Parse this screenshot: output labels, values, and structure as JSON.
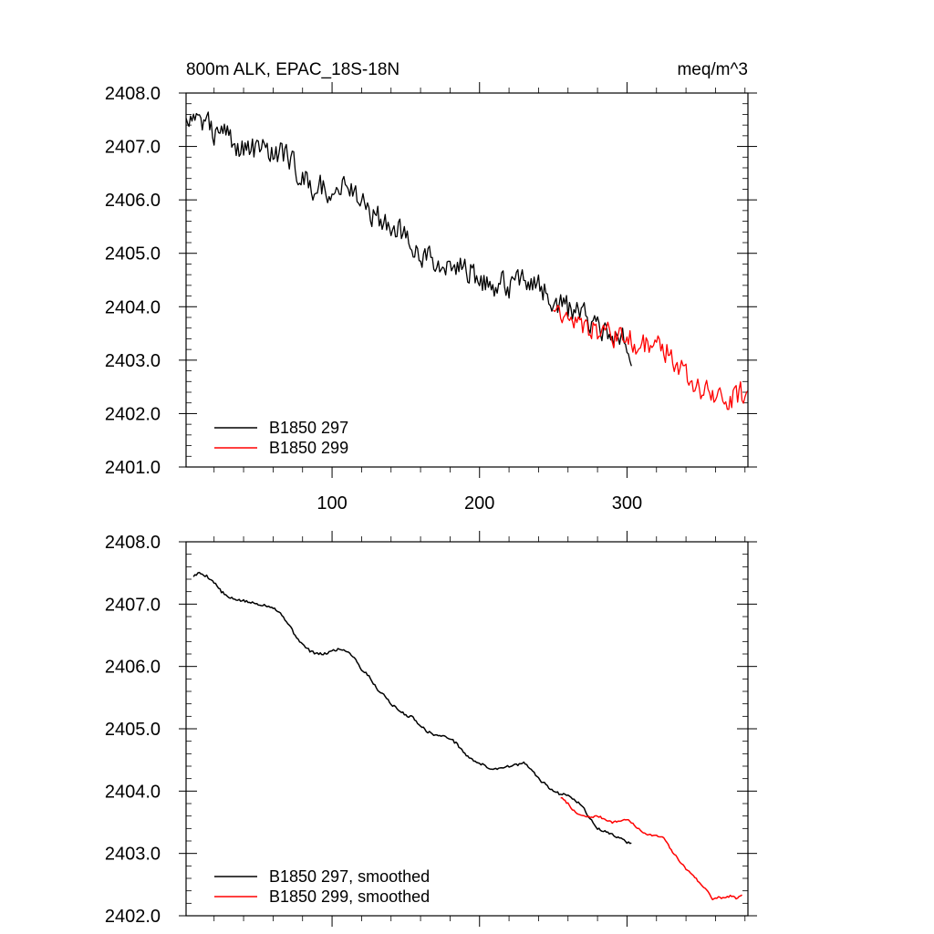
{
  "chart_data": [
    {
      "type": "line",
      "title": "800m ALK, EPAC_18S-18N",
      "units": "meq/m^3",
      "xlim": [
        1,
        382
      ],
      "ylim": [
        2401.0,
        2408.0
      ],
      "yticks": [
        "2401.0",
        "2402.0",
        "2403.0",
        "2404.0",
        "2405.0",
        "2406.0",
        "2407.0",
        "2408.0"
      ],
      "xticks": [
        "100",
        "200",
        "300"
      ],
      "xtick_values": [
        100,
        200,
        300
      ],
      "series": [
        {
          "name": "B1850 297",
          "color": "#000000",
          "x_start": 1,
          "x_end": 303,
          "anchors": [
            [
              1,
              2407.6
            ],
            [
              10,
              2407.5
            ],
            [
              25,
              2407.2
            ],
            [
              40,
              2407.0
            ],
            [
              55,
              2406.95
            ],
            [
              65,
              2406.9
            ],
            [
              75,
              2406.6
            ],
            [
              85,
              2406.25
            ],
            [
              100,
              2406.2
            ],
            [
              110,
              2406.3
            ],
            [
              120,
              2406.0
            ],
            [
              130,
              2405.65
            ],
            [
              140,
              2405.45
            ],
            [
              150,
              2405.35
            ],
            [
              160,
              2405.05
            ],
            [
              170,
              2404.85
            ],
            [
              180,
              2404.85
            ],
            [
              190,
              2404.75
            ],
            [
              200,
              2404.5
            ],
            [
              210,
              2404.4
            ],
            [
              220,
              2404.4
            ],
            [
              230,
              2404.55
            ],
            [
              240,
              2404.4
            ],
            [
              250,
              2404.1
            ],
            [
              260,
              2403.95
            ],
            [
              270,
              2403.85
            ],
            [
              280,
              2403.7
            ],
            [
              290,
              2403.5
            ],
            [
              300,
              2403.3
            ],
            [
              303,
              2403.2
            ]
          ],
          "noise": 0.23,
          "seed": 297
        },
        {
          "name": "B1850 299",
          "color": "#ff0000",
          "x_start": 250,
          "x_end": 382,
          "anchors": [
            [
              250,
              2404.0
            ],
            [
              260,
              2403.75
            ],
            [
              270,
              2403.6
            ],
            [
              280,
              2403.55
            ],
            [
              290,
              2403.45
            ],
            [
              300,
              2403.4
            ],
            [
              310,
              2403.3
            ],
            [
              320,
              2403.3
            ],
            [
              330,
              2403.1
            ],
            [
              340,
              2402.75
            ],
            [
              350,
              2402.45
            ],
            [
              360,
              2402.3
            ],
            [
              370,
              2402.3
            ],
            [
              382,
              2402.4
            ]
          ],
          "noise": 0.21,
          "seed": 299
        }
      ],
      "legend": [
        "B1850 297",
        "B1850 299"
      ],
      "legend_position": "bottom-left"
    },
    {
      "type": "line",
      "title": "",
      "xlim": [
        1,
        382
      ],
      "ylim": [
        2402.0,
        2408.0
      ],
      "yticks": [
        "2402.0",
        "2403.0",
        "2404.0",
        "2405.0",
        "2406.0",
        "2407.0",
        "2408.0"
      ],
      "xtick_values": [
        100,
        200,
        300
      ],
      "series": [
        {
          "name": "B1850 297, smoothed",
          "color": "#000000",
          "x_start": 6,
          "x_end": 303,
          "anchors": [
            [
              6,
              2407.45
            ],
            [
              10,
              2407.5
            ],
            [
              15,
              2407.45
            ],
            [
              20,
              2407.35
            ],
            [
              25,
              2407.2
            ],
            [
              30,
              2407.1
            ],
            [
              40,
              2407.05
            ],
            [
              50,
              2407.0
            ],
            [
              55,
              2406.98
            ],
            [
              60,
              2406.95
            ],
            [
              65,
              2406.85
            ],
            [
              70,
              2406.7
            ],
            [
              75,
              2406.5
            ],
            [
              80,
              2406.35
            ],
            [
              85,
              2406.25
            ],
            [
              90,
              2406.2
            ],
            [
              95,
              2406.2
            ],
            [
              100,
              2406.25
            ],
            [
              105,
              2406.28
            ],
            [
              110,
              2406.25
            ],
            [
              115,
              2406.15
            ],
            [
              120,
              2405.95
            ],
            [
              125,
              2405.85
            ],
            [
              130,
              2405.65
            ],
            [
              135,
              2405.55
            ],
            [
              140,
              2405.4
            ],
            [
              145,
              2405.3
            ],
            [
              150,
              2405.22
            ],
            [
              155,
              2405.18
            ],
            [
              160,
              2405.05
            ],
            [
              165,
              2404.95
            ],
            [
              170,
              2404.9
            ],
            [
              175,
              2404.88
            ],
            [
              180,
              2404.85
            ],
            [
              185,
              2404.75
            ],
            [
              190,
              2404.6
            ],
            [
              195,
              2404.5
            ],
            [
              200,
              2404.45
            ],
            [
              205,
              2404.38
            ],
            [
              210,
              2404.35
            ],
            [
              215,
              2404.38
            ],
            [
              220,
              2404.4
            ],
            [
              225,
              2404.42
            ],
            [
              230,
              2404.45
            ],
            [
              235,
              2404.35
            ],
            [
              240,
              2404.2
            ],
            [
              245,
              2404.1
            ],
            [
              250,
              2404.0
            ],
            [
              255,
              2403.95
            ],
            [
              260,
              2403.95
            ],
            [
              265,
              2403.85
            ],
            [
              270,
              2403.75
            ],
            [
              275,
              2403.55
            ],
            [
              280,
              2403.4
            ],
            [
              285,
              2403.35
            ],
            [
              290,
              2403.3
            ],
            [
              295,
              2403.25
            ],
            [
              300,
              2403.18
            ],
            [
              303,
              2403.15
            ]
          ],
          "wiggle": 0.02,
          "seed": 5
        },
        {
          "name": "B1850 299, smoothed",
          "color": "#ff0000",
          "x_start": 255,
          "x_end": 378,
          "anchors": [
            [
              255,
              2403.9
            ],
            [
              260,
              2403.8
            ],
            [
              265,
              2403.65
            ],
            [
              270,
              2403.6
            ],
            [
              275,
              2403.58
            ],
            [
              280,
              2403.6
            ],
            [
              285,
              2403.55
            ],
            [
              290,
              2403.5
            ],
            [
              295,
              2403.52
            ],
            [
              300,
              2403.55
            ],
            [
              305,
              2403.45
            ],
            [
              310,
              2403.35
            ],
            [
              315,
              2403.3
            ],
            [
              320,
              2403.28
            ],
            [
              325,
              2403.25
            ],
            [
              330,
              2403.05
            ],
            [
              335,
              2402.9
            ],
            [
              340,
              2402.75
            ],
            [
              345,
              2402.65
            ],
            [
              350,
              2402.5
            ],
            [
              355,
              2402.4
            ],
            [
              358,
              2402.25
            ],
            [
              362,
              2402.3
            ],
            [
              366,
              2402.28
            ],
            [
              370,
              2402.32
            ],
            [
              374,
              2402.28
            ],
            [
              378,
              2402.32
            ]
          ],
          "wiggle": 0.015,
          "seed": 7
        }
      ],
      "legend": [
        "B1850 297, smoothed",
        "B1850 299, smoothed"
      ],
      "legend_position": "bottom-left"
    }
  ]
}
